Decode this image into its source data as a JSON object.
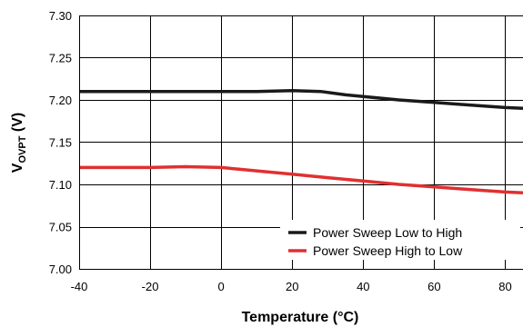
{
  "chart_data": {
    "type": "line",
    "title": "",
    "xlabel": "Temperature (°C)",
    "ylabel_main": "V",
    "ylabel_sub": "OVPT",
    "ylabel_unit": " (V)",
    "xlim": [
      -40,
      85
    ],
    "ylim": [
      7.0,
      7.3
    ],
    "xticks": [
      -40,
      -20,
      0,
      20,
      40,
      60,
      80
    ],
    "xtick_labels": [
      "-40",
      "-20",
      "0",
      "20",
      "40",
      "60",
      "80"
    ],
    "yticks": [
      7.0,
      7.05,
      7.1,
      7.15,
      7.2,
      7.25,
      7.3
    ],
    "ytick_labels": [
      "7.00",
      "7.05",
      "7.10",
      "7.15",
      "7.20",
      "7.25",
      "7.30"
    ],
    "grid": true,
    "legend_position": "bottom-right",
    "series": [
      {
        "name": "Power Sweep Low to High",
        "color": "#1a1a1a",
        "x": [
          -40,
          -20,
          0,
          10,
          20,
          28,
          35,
          40,
          50,
          60,
          70,
          80,
          85
        ],
        "y": [
          7.21,
          7.21,
          7.21,
          7.21,
          7.211,
          7.21,
          7.206,
          7.204,
          7.2,
          7.197,
          7.194,
          7.191,
          7.19
        ]
      },
      {
        "name": "Power Sweep High to Low",
        "color": "#e03030",
        "x": [
          -40,
          -20,
          -10,
          0,
          5,
          10,
          20,
          30,
          40,
          50,
          60,
          70,
          80,
          85
        ],
        "y": [
          7.12,
          7.12,
          7.121,
          7.12,
          7.118,
          7.116,
          7.112,
          7.108,
          7.104,
          7.1,
          7.097,
          7.094,
          7.091,
          7.09
        ]
      }
    ]
  }
}
